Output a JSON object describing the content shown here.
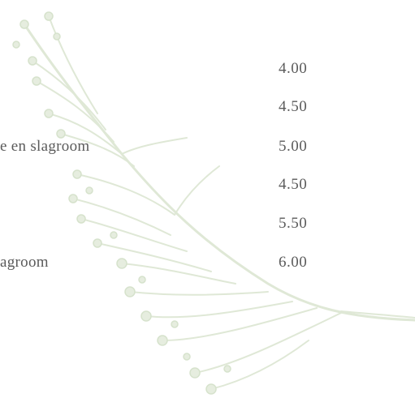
{
  "menu": {
    "items": [
      {
        "price": "4.00"
      },
      {
        "price": "4.50"
      },
      {
        "name": "e en slagroom",
        "price": "5.00"
      },
      {
        "price": "4.50"
      },
      {
        "price": "5.50"
      },
      {
        "name": "agroom",
        "price": "6.00"
      }
    ]
  }
}
